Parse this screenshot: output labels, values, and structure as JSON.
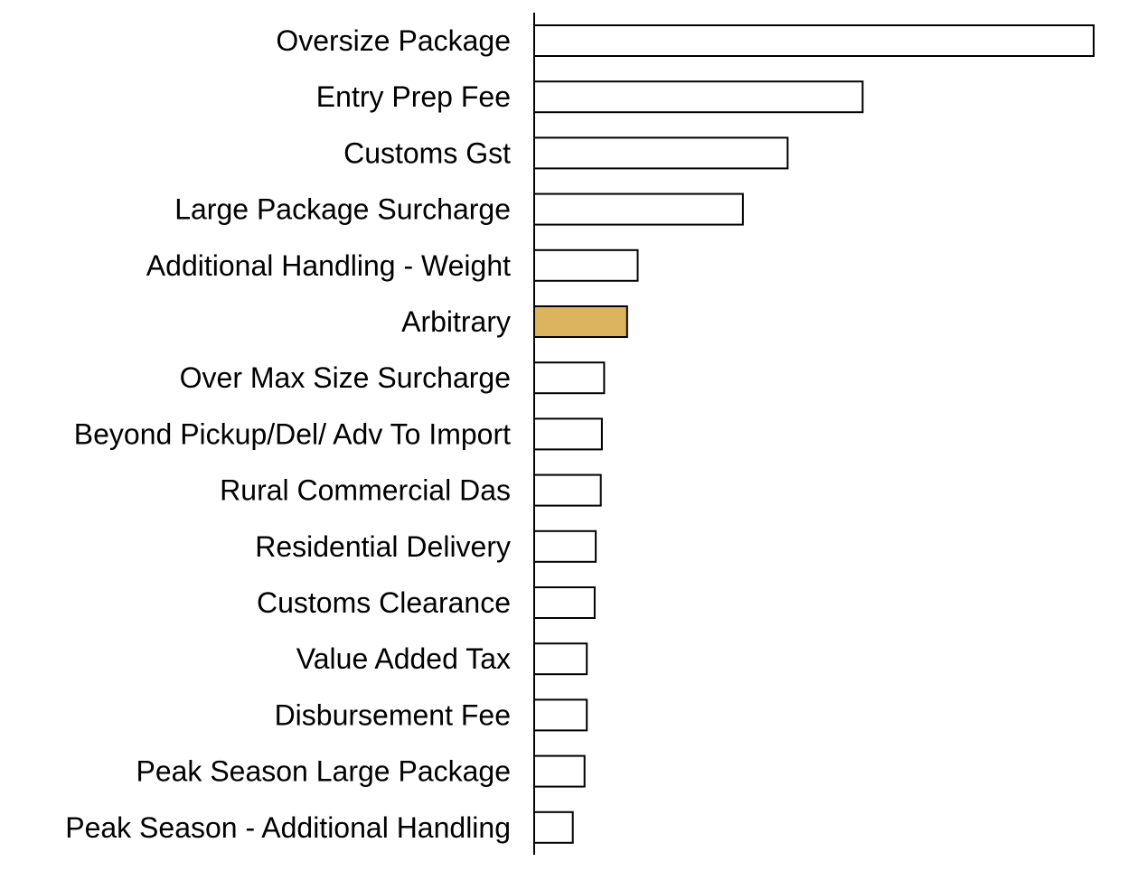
{
  "chart_data": {
    "type": "bar",
    "orientation": "horizontal",
    "title": "",
    "xlabel": "",
    "ylabel": "",
    "grid": false,
    "legend": "none",
    "categories": [
      "Oversize Package",
      "Entry Prep Fee",
      "Customs Gst",
      "Large Package Surcharge",
      "Additional Handling - Weight",
      "Arbitrary",
      "Over Max Size Surcharge",
      "Beyond Pickup/Del/ Adv To Import",
      "Rural Commercial Das",
      "Residential Delivery",
      "Customs Clearance",
      "Value Added Tax",
      "Disbursement Fee",
      "Peak Season Large Package",
      "Peak Season - Additional Handling"
    ],
    "values": [
      100,
      58.7,
      45.3,
      37.3,
      18.5,
      16.6,
      12.5,
      12.1,
      11.9,
      11.0,
      10.8,
      9.4,
      9.4,
      9.0,
      6.9
    ],
    "xlim": [
      0,
      100
    ],
    "highlight_category": "Arbitrary",
    "colors": {
      "bar_fill": "#ffffff",
      "bar_stroke": "#000000",
      "highlight_fill": "#dcb45e",
      "axis": "#000000"
    }
  }
}
